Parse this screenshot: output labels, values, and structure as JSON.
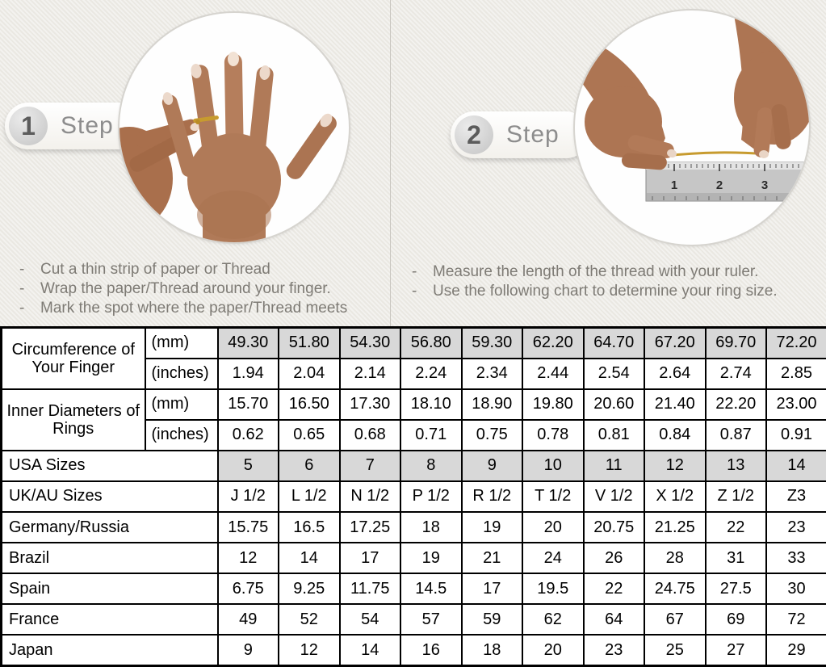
{
  "page": {
    "background_color": "#edebe6",
    "divider_color": "#c9c6c0",
    "accent_gold": "#c79b2f",
    "skin_tone": "#ad7553"
  },
  "instruction_bullet": "-",
  "steps": [
    {
      "number": "1",
      "label": "Step",
      "image": "hand-with-thread-on-ring-finger",
      "instructions": [
        "Cut a thin strip of paper or Thread",
        "Wrap the paper/Thread around your finger.",
        "Mark the spot where the paper/Thread meets"
      ]
    },
    {
      "number": "2",
      "label": "Step",
      "image": "hands-measuring-thread-with-ruler",
      "ruler_numbers": [
        "1",
        "2",
        "3"
      ],
      "instructions": [
        "Measure the length of the thread with your ruler.",
        "Use the following chart to determine your ring size."
      ]
    }
  ],
  "table": {
    "highlight_color": "#d8d8d8",
    "border_color": "#000000",
    "rows": [
      {
        "label": "Circumference of Your Finger",
        "label_rowspan": 2,
        "unit": "(mm)",
        "shaded": true,
        "values": [
          "49.30",
          "51.80",
          "54.30",
          "56.80",
          "59.30",
          "62.20",
          "64.70",
          "67.20",
          "69.70",
          "72.20"
        ]
      },
      {
        "unit": "(inches)",
        "values": [
          "1.94",
          "2.04",
          "2.14",
          "2.24",
          "2.34",
          "2.44",
          "2.54",
          "2.64",
          "2.74",
          "2.85"
        ]
      },
      {
        "label": "Inner Diameters of Rings",
        "label_rowspan": 2,
        "unit": "(mm)",
        "values": [
          "15.70",
          "16.50",
          "17.30",
          "18.10",
          "18.90",
          "19.80",
          "20.60",
          "21.40",
          "22.20",
          "23.00"
        ]
      },
      {
        "unit": "(inches)",
        "values": [
          "0.62",
          "0.65",
          "0.68",
          "0.71",
          "0.75",
          "0.78",
          "0.81",
          "0.84",
          "0.87",
          "0.91"
        ]
      },
      {
        "label": "USA Sizes",
        "label_colspan": 2,
        "shaded": true,
        "values": [
          "5",
          "6",
          "7",
          "8",
          "9",
          "10",
          "11",
          "12",
          "13",
          "14"
        ]
      },
      {
        "label": "UK/AU Sizes",
        "label_colspan": 2,
        "values": [
          "J 1/2",
          "L 1/2",
          "N 1/2",
          "P 1/2",
          "R 1/2",
          "T 1/2",
          "V 1/2",
          "X 1/2",
          "Z 1/2",
          "Z3"
        ]
      },
      {
        "label": "Germany/Russia",
        "label_colspan": 2,
        "values": [
          "15.75",
          "16.5",
          "17.25",
          "18",
          "19",
          "20",
          "20.75",
          "21.25",
          "22",
          "23"
        ]
      },
      {
        "label": "Brazil",
        "label_colspan": 2,
        "values": [
          "12",
          "14",
          "17",
          "19",
          "21",
          "24",
          "26",
          "28",
          "31",
          "33"
        ]
      },
      {
        "label": "Spain",
        "label_colspan": 2,
        "values": [
          "6.75",
          "9.25",
          "11.75",
          "14.5",
          "17",
          "19.5",
          "22",
          "24.75",
          "27.5",
          "30"
        ]
      },
      {
        "label": "France",
        "label_colspan": 2,
        "values": [
          "49",
          "52",
          "54",
          "57",
          "59",
          "62",
          "64",
          "67",
          "69",
          "72"
        ]
      },
      {
        "label": "Japan",
        "label_colspan": 2,
        "values": [
          "9",
          "12",
          "14",
          "16",
          "18",
          "20",
          "23",
          "25",
          "27",
          "29"
        ]
      }
    ]
  }
}
